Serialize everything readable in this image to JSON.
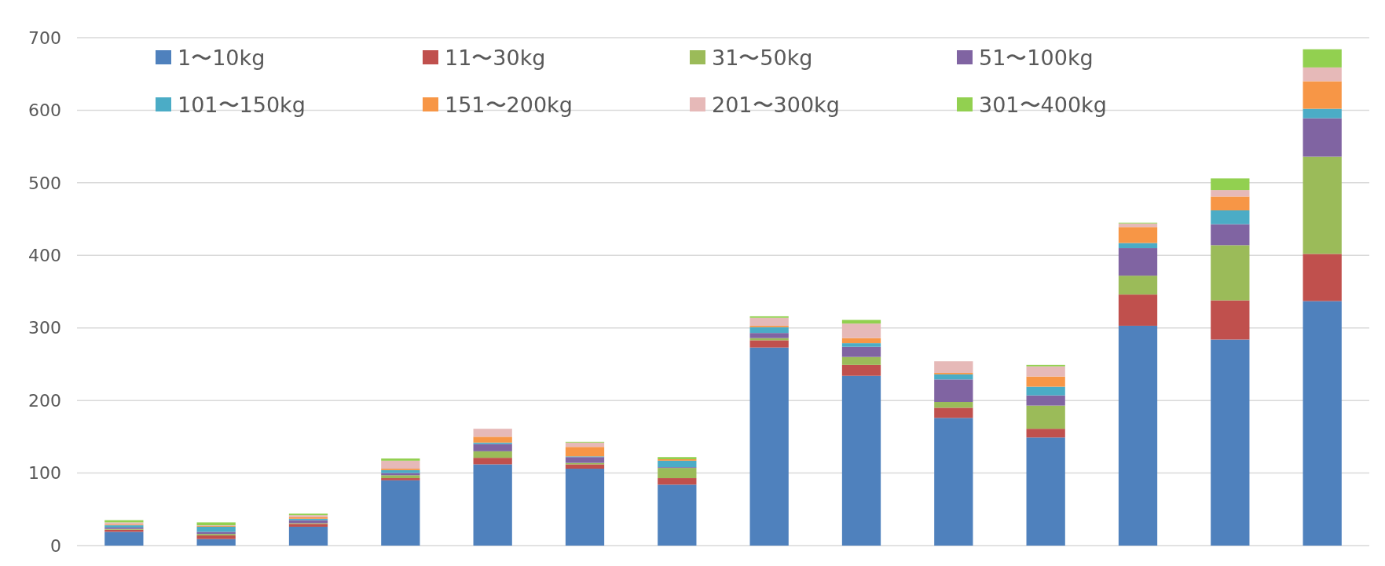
{
  "chart_data": {
    "type": "bar",
    "stacked": true,
    "categories": [
      null,
      null,
      null,
      null,
      null,
      null,
      null,
      null,
      null,
      null,
      null,
      null,
      null,
      null
    ],
    "ylim": [
      0,
      700
    ],
    "yticks": [
      0,
      100,
      200,
      300,
      400,
      500,
      600,
      700
    ],
    "grid": "y",
    "legend": "top left",
    "series": [
      {
        "name": "1〜10kg",
        "color": "#4f81bd",
        "values": [
          19,
          9,
          26,
          90,
          112,
          106,
          84,
          273,
          234,
          176,
          149,
          303,
          284,
          337
        ]
      },
      {
        "name": "11〜30kg",
        "color": "#c0504d",
        "values": [
          3,
          5,
          4,
          3,
          9,
          6,
          9,
          10,
          15,
          14,
          12,
          43,
          54,
          65
        ]
      },
      {
        "name": "31〜50kg",
        "color": "#9bbb59",
        "values": [
          1,
          2,
          1,
          4,
          9,
          2,
          14,
          3,
          11,
          8,
          32,
          26,
          76,
          134
        ]
      },
      {
        "name": "51〜100kg",
        "color": "#8064a2",
        "values": [
          2,
          3,
          4,
          3,
          10,
          8,
          1,
          7,
          14,
          31,
          14,
          38,
          29,
          53
        ]
      },
      {
        "name": "101〜150kg",
        "color": "#4bacc6",
        "values": [
          3,
          7,
          2,
          4,
          2,
          1,
          9,
          8,
          5,
          7,
          12,
          7,
          19,
          13
        ]
      },
      {
        "name": "151〜200kg",
        "color": "#f79646",
        "values": [
          1,
          1,
          2,
          2,
          8,
          13,
          2,
          2,
          7,
          2,
          14,
          22,
          19,
          38
        ]
      },
      {
        "name": "201〜300kg",
        "color": "#e6b9b8",
        "values": [
          3,
          1,
          3,
          11,
          11,
          6,
          null,
          11,
          20,
          16,
          14,
          5,
          9,
          19
        ]
      },
      {
        "name": "301〜400kg",
        "color": "#92d050",
        "values": [
          3,
          4,
          2,
          3,
          0,
          1,
          3,
          2,
          5,
          0,
          2,
          1,
          16,
          25
        ]
      }
    ]
  }
}
